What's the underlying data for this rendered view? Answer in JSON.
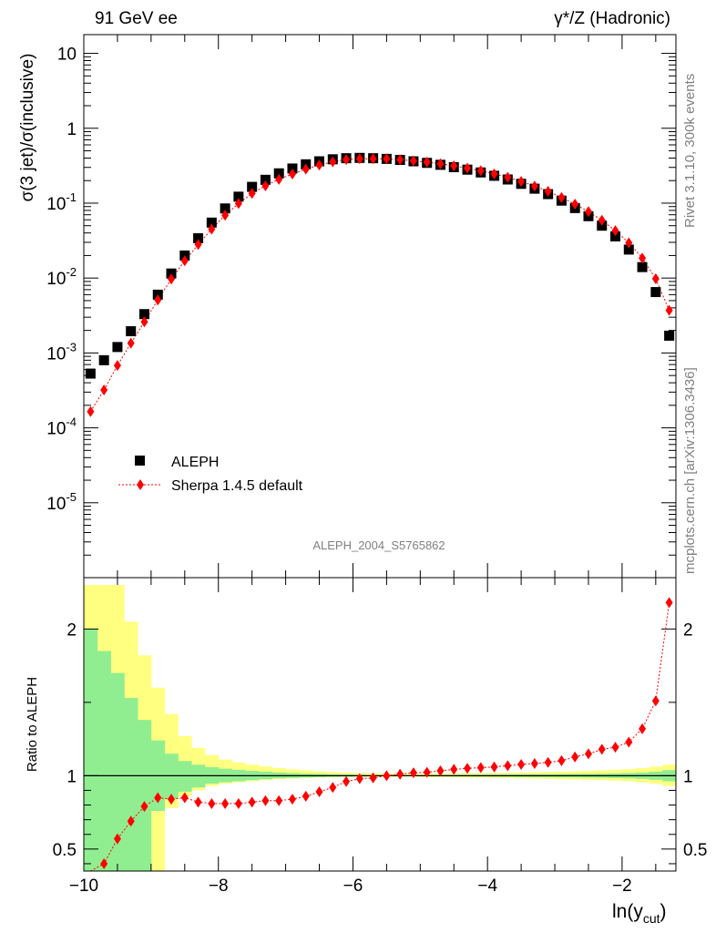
{
  "header": {
    "left": "91 GeV ee",
    "right_main": "γ*/Z (Hadronic)"
  },
  "side_notes": {
    "rivet": "Rivet 3.1.10,  300k events",
    "mcplots": "mcplots.cern.ch [arXiv:1306.3436]"
  },
  "analysis_id": "ALEPH_2004_S5765862",
  "main_panel": {
    "ylabel": "σ(3 jet)/σ(inclusive)",
    "yticks": [
      {
        "base": "10",
        "exp": "-5",
        "log": -5
      },
      {
        "base": "10",
        "exp": "-4",
        "log": -4
      },
      {
        "base": "10",
        "exp": "-3",
        "log": -3
      },
      {
        "base": "10",
        "exp": "-2",
        "log": -2
      },
      {
        "base": "10",
        "exp": "-1",
        "log": -1
      },
      {
        "base": "1",
        "exp": "",
        "log": 0
      },
      {
        "base": "10",
        "exp": "",
        "log": 1
      }
    ]
  },
  "ratio_panel": {
    "ylabel": "Ratio to ALEPH",
    "yticks": [
      "0.5",
      "1",
      "2"
    ],
    "ytick_values": [
      0.5,
      1,
      2
    ]
  },
  "legend": [
    {
      "label": "ALEPH",
      "marker": "square",
      "color": "#000000"
    },
    {
      "label": "Sherpa 1.4.5 default",
      "marker": "diamond",
      "color": "#ff0000"
    }
  ],
  "chart_data": {
    "type": "scatter",
    "title": "91 GeV ee — γ*/Z (Hadronic)",
    "xlabel": "ln(y_cut)",
    "xlabel_main": "ln(y",
    "xlabel_sub": "cut",
    "xlabel_close": ")",
    "ylabel": "σ(3 jet)/σ(inclusive)",
    "xlim": [
      -10.0,
      -1.2
    ],
    "ylim_log10": [
      -6.0,
      1.25
    ],
    "ratio_ylim": [
      0.35,
      2.35
    ],
    "xtick_values": [
      -10,
      -8,
      -6,
      -4,
      -2
    ],
    "xtick_labels": [
      "−10",
      "−8",
      "−6",
      "−4",
      "−2"
    ],
    "x": [
      -9.9,
      -9.7,
      -9.5,
      -9.3,
      -9.1,
      -8.9,
      -8.7,
      -8.5,
      -8.3,
      -8.1,
      -7.9,
      -7.7,
      -7.5,
      -7.3,
      -7.1,
      -6.9,
      -6.7,
      -6.5,
      -6.3,
      -6.1,
      -5.9,
      -5.7,
      -5.5,
      -5.3,
      -5.1,
      -4.9,
      -4.7,
      -4.5,
      -4.3,
      -4.1,
      -3.9,
      -3.7,
      -3.5,
      -3.3,
      -3.1,
      -2.9,
      -2.7,
      -2.5,
      -2.3,
      -2.1,
      -1.9,
      -1.7,
      -1.5,
      -1.3
    ],
    "series": [
      {
        "name": "ALEPH",
        "marker": "square",
        "color": "#000000",
        "values": [
          0.00053,
          0.0008,
          0.0012,
          0.00195,
          0.0033,
          0.006,
          0.0115,
          0.02,
          0.034,
          0.055,
          0.085,
          0.122,
          0.165,
          0.205,
          0.25,
          0.29,
          0.33,
          0.362,
          0.385,
          0.398,
          0.402,
          0.398,
          0.39,
          0.378,
          0.362,
          0.345,
          0.325,
          0.302,
          0.28,
          0.257,
          0.232,
          0.207,
          0.181,
          0.156,
          0.132,
          0.108,
          0.086,
          0.067,
          0.05,
          0.036,
          0.024,
          0.014,
          0.0065,
          0.0017
        ]
      },
      {
        "name": "Sherpa 1.4.5 default",
        "marker": "diamond",
        "color": "#ff0000",
        "values": [
          0.000165,
          0.00032,
          0.00068,
          0.00135,
          0.0026,
          0.0051,
          0.0097,
          0.017,
          0.028,
          0.045,
          0.069,
          0.099,
          0.135,
          0.17,
          0.208,
          0.245,
          0.285,
          0.323,
          0.356,
          0.382,
          0.392,
          0.392,
          0.391,
          0.381,
          0.368,
          0.353,
          0.336,
          0.315,
          0.294,
          0.271,
          0.246,
          0.221,
          0.195,
          0.169,
          0.144,
          0.119,
          0.097,
          0.077,
          0.059,
          0.043,
          0.0295,
          0.0185,
          0.0098,
          0.0037
        ]
      }
    ],
    "ratio": {
      "ylabel": "Ratio to ALEPH",
      "values": [
        0.31,
        0.4,
        0.57,
        0.69,
        0.79,
        0.85,
        0.84,
        0.85,
        0.82,
        0.81,
        0.81,
        0.81,
        0.82,
        0.83,
        0.83,
        0.84,
        0.86,
        0.89,
        0.92,
        0.96,
        0.98,
        0.985,
        1.0,
        1.01,
        1.02,
        1.023,
        1.033,
        1.043,
        1.05,
        1.055,
        1.06,
        1.068,
        1.077,
        1.083,
        1.091,
        1.102,
        1.128,
        1.149,
        1.18,
        1.194,
        1.229,
        1.32,
        1.51,
        2.18
      ],
      "band_edges": [
        -10.0,
        -9.8,
        -9.6,
        -9.4,
        -9.2,
        -9.0,
        -8.8,
        -8.6,
        -8.4,
        -8.2,
        -8.0,
        -7.8,
        -7.6,
        -7.4,
        -7.2,
        -7.0,
        -6.8,
        -6.6,
        -6.4,
        -6.2,
        -6.0,
        -5.8,
        -5.6,
        -5.4,
        -5.2,
        -5.0,
        -4.8,
        -4.6,
        -4.4,
        -4.2,
        -4.0,
        -3.8,
        -3.6,
        -3.4,
        -3.2,
        -3.0,
        -2.8,
        -2.6,
        -2.4,
        -2.2,
        -2.0,
        -1.8,
        -1.6,
        -1.4,
        -1.2
      ],
      "band_stat_lo": [
        0.3,
        0.3,
        0.3,
        0.3,
        0.35,
        0.76,
        0.84,
        0.89,
        0.92,
        0.945,
        0.955,
        0.962,
        0.97,
        0.976,
        0.982,
        0.985,
        0.988,
        0.99,
        0.992,
        0.993,
        0.994,
        0.995,
        0.996,
        0.996,
        0.996,
        0.995,
        0.995,
        0.994,
        0.994,
        0.993,
        0.993,
        0.992,
        0.991,
        0.99,
        0.99,
        0.989,
        0.988,
        0.987,
        0.986,
        0.984,
        0.982,
        0.978,
        0.972,
        0.962
      ],
      "band_stat_hi": [
        2.0,
        1.85,
        1.7,
        1.53,
        1.38,
        1.24,
        1.15,
        1.1,
        1.075,
        1.058,
        1.048,
        1.04,
        1.033,
        1.027,
        1.022,
        1.018,
        1.014,
        1.012,
        1.01,
        1.008,
        1.006,
        1.005,
        1.004,
        1.004,
        1.004,
        1.005,
        1.005,
        1.006,
        1.006,
        1.007,
        1.007,
        1.008,
        1.009,
        1.01,
        1.01,
        1.011,
        1.012,
        1.013,
        1.014,
        1.016,
        1.018,
        1.022,
        1.028,
        1.038
      ],
      "band_tot_lo": [
        0.3,
        0.3,
        0.3,
        0.3,
        0.3,
        0.3,
        0.78,
        0.86,
        0.9,
        0.93,
        0.945,
        0.955,
        0.963,
        0.97,
        0.976,
        0.98,
        0.984,
        0.987,
        0.989,
        0.991,
        0.992,
        0.993,
        0.994,
        0.994,
        0.993,
        0.992,
        0.991,
        0.99,
        0.988,
        0.987,
        0.985,
        0.984,
        0.982,
        0.98,
        0.978,
        0.976,
        0.974,
        0.972,
        0.97,
        0.966,
        0.962,
        0.955,
        0.945,
        0.93
      ],
      "band_tot_hi": [
        2.3,
        2.3,
        2.3,
        2.05,
        1.82,
        1.6,
        1.42,
        1.27,
        1.19,
        1.14,
        1.11,
        1.09,
        1.075,
        1.063,
        1.052,
        1.043,
        1.036,
        1.03,
        1.025,
        1.021,
        1.018,
        1.016,
        1.015,
        1.014,
        1.014,
        1.014,
        1.015,
        1.016,
        1.017,
        1.018,
        1.019,
        1.02,
        1.022,
        1.024,
        1.026,
        1.028,
        1.03,
        1.033,
        1.036,
        1.04,
        1.045,
        1.052,
        1.062,
        1.075
      ]
    }
  }
}
